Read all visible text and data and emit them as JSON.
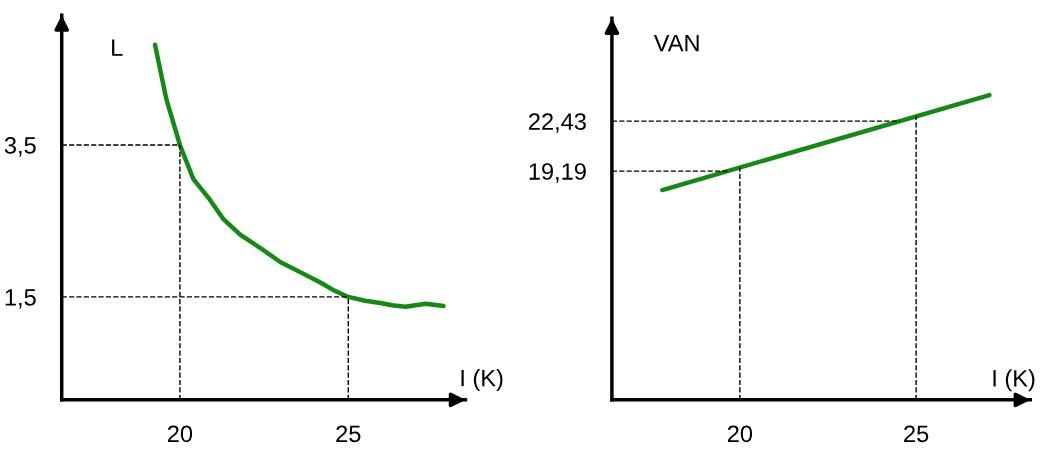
{
  "chart_data": [
    {
      "type": "line",
      "xlabel": "I (K)",
      "ylabel": "L",
      "xlim": [
        16.49,
        28.48
      ],
      "ylim": [
        0.145,
        5.21
      ],
      "xticks": [
        20,
        25
      ],
      "yticks": [
        {
          "value": 3.5,
          "label": "3,5"
        },
        {
          "value": 1.5,
          "label": "1,5"
        }
      ],
      "grid": false,
      "legend": false,
      "marker": "none",
      "line_style": "solid",
      "series": [
        {
          "color": "#138a13",
          "x": [
            19.26,
            19.6,
            20,
            20.4,
            20.89,
            21.3,
            21.79,
            22.4,
            22.98,
            23.6,
            24.17,
            24.6,
            25,
            25.5,
            25.95,
            26.3,
            26.7,
            27.0,
            27.3,
            27.83
          ],
          "values": [
            4.82,
            4.1,
            3.5,
            3.05,
            2.78,
            2.52,
            2.32,
            2.14,
            1.96,
            1.82,
            1.69,
            1.58,
            1.5,
            1.45,
            1.42,
            1.39,
            1.37,
            1.39,
            1.41,
            1.38
          ]
        }
      ],
      "ref_lines": [
        {
          "axis": "x",
          "value": 20,
          "line_style": "dashed",
          "color": "#000000"
        },
        {
          "axis": "y",
          "value": 3.5,
          "line_style": "dashed",
          "color": "#000000"
        },
        {
          "axis": "x",
          "value": 25,
          "line_style": "dashed",
          "color": "#000000"
        },
        {
          "axis": "y",
          "value": 1.5,
          "line_style": "dashed",
          "color": "#000000"
        }
      ]
    },
    {
      "type": "line",
      "xlabel": "I (K)",
      "ylabel": "VAN",
      "xlim": [
        16.37,
        28.24
      ],
      "ylim": [
        4.35,
        29.1
      ],
      "xticks": [
        20,
        25
      ],
      "yticks": [
        {
          "value": 22.43,
          "label": "22,43"
        },
        {
          "value": 19.19,
          "label": "19,19"
        }
      ],
      "grid": false,
      "legend": false,
      "marker": "none",
      "line_style": "solid",
      "series": [
        {
          "color": "#138a13",
          "x": [
            17.8,
            27.08
          ],
          "values": [
            17.96,
            24.12
          ]
        }
      ],
      "ref_lines": [
        {
          "axis": "x",
          "value": 20,
          "line_style": "dashed",
          "color": "#000000"
        },
        {
          "axis": "y",
          "value": 19.19,
          "line_style": "dashed",
          "color": "#000000"
        },
        {
          "axis": "x",
          "value": 25,
          "line_style": "dashed",
          "color": "#000000"
        },
        {
          "axis": "y",
          "value": 22.43,
          "line_style": "dashed",
          "color": "#000000"
        }
      ]
    }
  ]
}
